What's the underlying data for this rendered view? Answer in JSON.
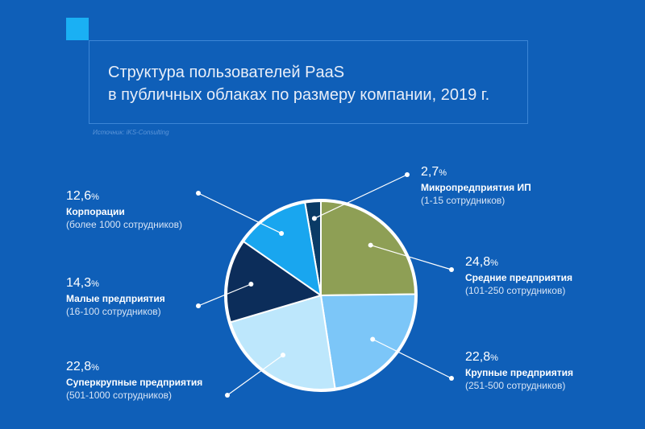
{
  "title_lines": [
    "Структура пользователей PaaS",
    "в публичных облаках по размеру компании, 2019 г."
  ],
  "source": "Источник: iKS-Consulting",
  "colors": {
    "background": "#0f5fb8",
    "accent": "#1ab0f4"
  },
  "chart_data": {
    "type": "pie",
    "unit": "%",
    "slices": [
      {
        "pct_text": "2,7",
        "value": 2.7,
        "name": "Микропредприятия ИП",
        "desc": "(1-15 сотрудников)",
        "color": "#0a3b66"
      },
      {
        "pct_text": "24,8",
        "value": 24.8,
        "name": "Средние предприятия",
        "desc": "(101-250 сотрудников)",
        "color": "#8e9f55"
      },
      {
        "pct_text": "22,8",
        "value": 22.8,
        "name": "Крупные предприятия",
        "desc": "(251-500 сотрудников)",
        "color": "#7cc6f8"
      },
      {
        "pct_text": "22,8",
        "value": 22.8,
        "name": "Суперкрупные предприятия",
        "desc": "(501-1000 сотрудников)",
        "color": "#bde7fc"
      },
      {
        "pct_text": "14,3",
        "value": 14.3,
        "name": "Малые предприятия",
        "desc": "(16-100 сотрудников)",
        "color": "#0c2d5a"
      },
      {
        "pct_text": "12,6",
        "value": 12.6,
        "name": "Корпорации",
        "desc": "(более 1000 сотрудников)",
        "color": "#19a6ef"
      }
    ]
  }
}
